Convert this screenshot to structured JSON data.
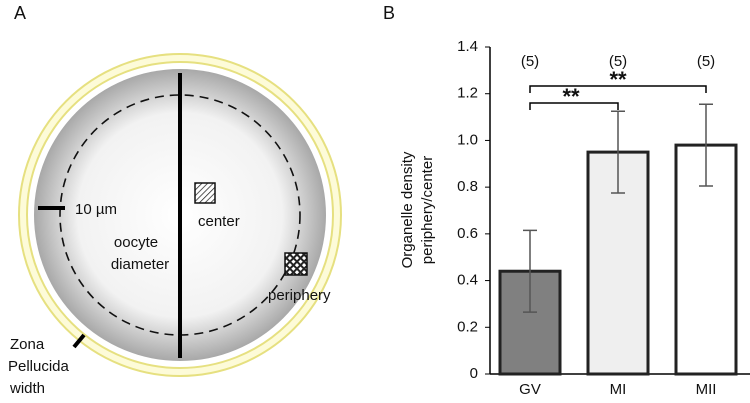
{
  "panel_a": {
    "label": "A",
    "scale_bar": "10 µm",
    "center": "center",
    "periphery": "periphery",
    "diameter": [
      "oocyte",
      "diameter"
    ],
    "zona": [
      "Zona",
      "Pellucida",
      "width"
    ]
  },
  "chart_data": {
    "type": "bar",
    "label": "B",
    "y_label": [
      "Organelle density",
      "periphery/center"
    ],
    "categories": [
      "GV",
      "MI",
      "MII"
    ],
    "values": [
      0.44,
      0.95,
      0.98
    ],
    "errors": [
      0.175,
      0.175,
      0.175
    ],
    "colors": [
      "#808080",
      "#efefef",
      "#ffffff"
    ],
    "n_labels": [
      "(5)",
      "(5)",
      "(5)"
    ],
    "significance": [
      "**",
      "**"
    ],
    "ylim": [
      0,
      1.4
    ],
    "yticks": [
      0,
      0.2,
      0.4,
      0.6,
      0.8,
      {
        "value": 1,
        "label": "1.0"
      },
      1.2,
      1.4
    ]
  }
}
